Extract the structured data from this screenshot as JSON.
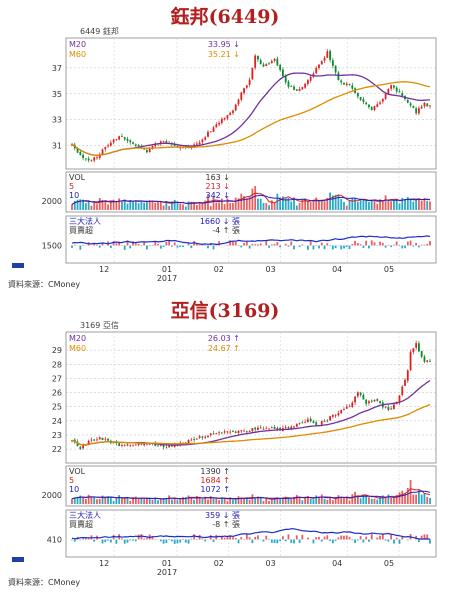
{
  "sections": [
    {
      "heading": "鈺邦(6449)",
      "code_label": "6449 鈺邦",
      "source": "資料來源：CMoney",
      "price_legend": [
        {
          "label": "M20",
          "value": "33.95 ↓",
          "color": "#7030a0"
        },
        {
          "label": "M60",
          "value": "35.21 ↓",
          "color": "#e08a00"
        }
      ],
      "price_yticks": [
        "37",
        "35",
        "33",
        "31"
      ],
      "vol_legend": [
        {
          "label": "VOL",
          "value": "163 ↓",
          "color": "#333333"
        },
        {
          "label": "5",
          "value": "213 ↓",
          "color": "#d62020"
        },
        {
          "label": "10",
          "value": "342 ↓",
          "color": "#2020c0"
        }
      ],
      "vol_ytick": "2000",
      "inst_legend": [
        {
          "label": "三大法人",
          "value": "1660 ↓ 張",
          "color": "#2020c0"
        },
        {
          "label": "買賣超",
          "value": "-4 ↑ 張",
          "color": "#333333"
        }
      ],
      "inst_ytick": "1500",
      "xticks": [
        "12",
        "01",
        "02",
        "03",
        "04",
        "05"
      ],
      "xyear": "2017"
    },
    {
      "heading": "亞信(3169)",
      "code_label": "3169 亞信",
      "source": "資料來源：CMoney",
      "price_legend": [
        {
          "label": "M20",
          "value": "26.03 ↑",
          "color": "#7030a0"
        },
        {
          "label": "M60",
          "value": "24.67 ↑",
          "color": "#e08a00"
        }
      ],
      "price_yticks": [
        "29",
        "28",
        "27",
        "26",
        "25",
        "24",
        "23",
        "22"
      ],
      "vol_legend": [
        {
          "label": "VOL",
          "value": "1390 ↑",
          "color": "#333333"
        },
        {
          "label": "5",
          "value": "1684 ↑",
          "color": "#d62020"
        },
        {
          "label": "10",
          "value": "1072 ↑",
          "color": "#2020c0"
        }
      ],
      "vol_ytick": "2000",
      "inst_legend": [
        {
          "label": "三大法人",
          "value": "359 ↓ 張",
          "color": "#2020c0"
        },
        {
          "label": "買賣超",
          "value": "-8 ↑ 張",
          "color": "#333333"
        }
      ],
      "inst_ytick": "410",
      "xticks": [
        "12",
        "01",
        "02",
        "03",
        "04",
        "05"
      ],
      "xyear": "2017"
    }
  ],
  "chart_data": [
    {
      "type": "candlestick",
      "title": "鈺邦(6449)",
      "price_axis_ticks": [
        31,
        33,
        35,
        37
      ],
      "ylim": [
        29.5,
        39
      ],
      "x_months": [
        "12",
        "01",
        "02",
        "03",
        "04",
        "05"
      ],
      "close_anchors": [
        [
          0,
          31.0
        ],
        [
          3,
          30.2
        ],
        [
          7,
          29.8
        ],
        [
          12,
          30.8
        ],
        [
          17,
          31.8
        ],
        [
          22,
          31.1
        ],
        [
          27,
          30.6
        ],
        [
          32,
          31.4
        ],
        [
          37,
          31.0
        ],
        [
          42,
          30.8
        ],
        [
          46,
          31.3
        ],
        [
          50,
          32.2
        ],
        [
          54,
          33.0
        ],
        [
          58,
          33.6
        ],
        [
          61,
          35.0
        ],
        [
          64,
          36.0
        ],
        [
          66,
          38.0
        ],
        [
          69,
          37.0
        ],
        [
          73,
          37.8
        ],
        [
          77,
          35.8
        ],
        [
          81,
          35.2
        ],
        [
          85,
          36.0
        ],
        [
          89,
          37.2
        ],
        [
          92,
          38.2
        ],
        [
          96,
          36.0
        ],
        [
          100,
          35.6
        ],
        [
          104,
          34.5
        ],
        [
          108,
          33.8
        ],
        [
          112,
          34.6
        ],
        [
          115,
          35.7
        ],
        [
          118,
          35.0
        ],
        [
          121,
          34.3
        ],
        [
          124,
          33.6
        ],
        [
          127,
          34.2
        ],
        [
          129,
          34.0
        ]
      ],
      "last": {
        "M20": 33.95,
        "M60": 35.21,
        "VOL": 163,
        "VOL_MA5": 213,
        "VOL_MA10": 342,
        "institutional": 1660,
        "net_buy": -4
      }
    },
    {
      "type": "candlestick",
      "title": "亞信(3169)",
      "price_axis_ticks": [
        22,
        23,
        24,
        25,
        26,
        27,
        28,
        29
      ],
      "ylim": [
        21.3,
        30
      ],
      "x_months": [
        "12",
        "01",
        "02",
        "03",
        "04",
        "05"
      ],
      "close_anchors": [
        [
          0,
          22.6
        ],
        [
          3,
          22.0
        ],
        [
          6,
          22.5
        ],
        [
          10,
          22.8
        ],
        [
          15,
          22.4
        ],
        [
          20,
          22.2
        ],
        [
          25,
          22.4
        ],
        [
          30,
          22.3
        ],
        [
          35,
          22.2
        ],
        [
          40,
          22.4
        ],
        [
          45,
          22.8
        ],
        [
          50,
          23.0
        ],
        [
          55,
          23.3
        ],
        [
          60,
          23.2
        ],
        [
          65,
          23.4
        ],
        [
          70,
          23.5
        ],
        [
          75,
          23.4
        ],
        [
          80,
          23.6
        ],
        [
          85,
          24.0
        ],
        [
          88,
          23.7
        ],
        [
          92,
          24.1
        ],
        [
          96,
          24.6
        ],
        [
          100,
          25.0
        ],
        [
          103,
          26.0
        ],
        [
          106,
          25.3
        ],
        [
          109,
          25.5
        ],
        [
          112,
          25.0
        ],
        [
          114,
          24.8
        ],
        [
          117,
          25.3
        ],
        [
          119,
          26.4
        ],
        [
          121,
          27.5
        ],
        [
          122,
          28.8
        ],
        [
          124,
          29.4
        ],
        [
          126,
          28.6
        ],
        [
          127,
          28.2
        ]
      ],
      "last": {
        "M20": 26.03,
        "M60": 24.67,
        "VOL": 1390,
        "VOL_MA5": 1684,
        "VOL_MA10": 1072,
        "institutional": 359,
        "net_buy": -8
      }
    }
  ]
}
